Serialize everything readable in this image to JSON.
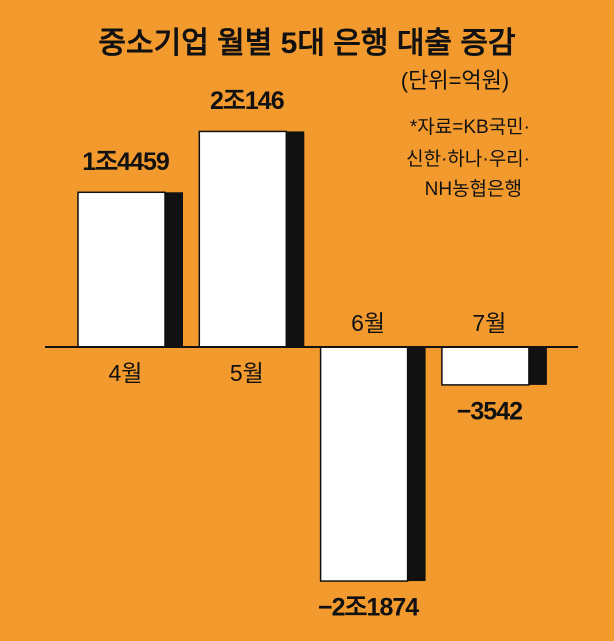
{
  "chart_data": {
    "type": "bar",
    "title": "중소기업 월별 5대 은행 대출 증감",
    "unit": "(단위=억원)",
    "source": [
      "*자료=KB국민·",
      "신한·하나·우리·",
      "NH농협은행"
    ],
    "categories": [
      "4월",
      "5월",
      "6월",
      "7월"
    ],
    "values": [
      14459,
      20146,
      -21874,
      -3542
    ],
    "value_labels": [
      "1조4459",
      "2조146",
      "−2조1874",
      "−3542"
    ],
    "color": "#ffffff",
    "background": "#f39a2e"
  }
}
